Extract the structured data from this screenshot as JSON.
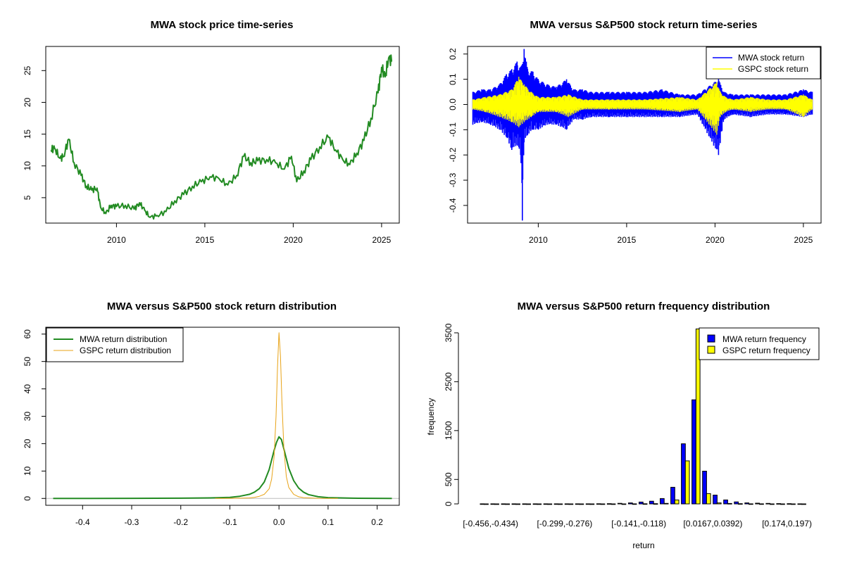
{
  "colors": {
    "price_line": "#228B22",
    "mwa": "#0000FF",
    "gspc": "#FFFF00",
    "mwa_density": "#228B22",
    "gspc_density": "#E8A317",
    "frame": "#000000"
  },
  "chart_data": [
    {
      "id": "price",
      "type": "line",
      "title": "MWA stock price time-series",
      "xlabel": "",
      "ylabel": "",
      "xlim": [
        2006.0,
        2026.0
      ],
      "ylim": [
        1.0,
        28.8
      ],
      "xticks": [
        2010,
        2015,
        2020,
        2025
      ],
      "yticks": [
        5,
        10,
        15,
        20,
        25
      ],
      "series": [
        {
          "x": [
            2006.3,
            2006.5,
            2006.8,
            2007.0,
            2007.3,
            2007.6,
            2008.0,
            2008.3,
            2008.6,
            2008.9,
            2009.1,
            2009.4,
            2009.7,
            2010.0,
            2010.5,
            2011.0,
            2011.3,
            2011.6,
            2011.9,
            2012.3,
            2012.8,
            2013.3,
            2013.8,
            2014.3,
            2014.8,
            2015.3,
            2015.8,
            2016.3,
            2016.8,
            2017.2,
            2017.6,
            2018.0,
            2018.5,
            2019.0,
            2019.5,
            2019.9,
            2020.2,
            2020.6,
            2021.0,
            2021.5,
            2022.0,
            2022.4,
            2022.8,
            2023.2,
            2023.6,
            2024.0,
            2024.4,
            2024.8,
            2025.0,
            2025.2,
            2025.4,
            2025.6
          ],
          "y": [
            12.5,
            12.8,
            11.2,
            11.5,
            14.2,
            10.5,
            8.5,
            6.8,
            6.2,
            6.5,
            3.5,
            2.5,
            3.8,
            3.6,
            3.8,
            3.2,
            4.2,
            3.0,
            1.9,
            2.2,
            2.8,
            4.5,
            5.5,
            6.8,
            7.5,
            8.3,
            8.0,
            7.0,
            8.5,
            11.5,
            10.5,
            10.8,
            11.0,
            10.5,
            9.5,
            11.5,
            7.5,
            9.2,
            11.0,
            13.0,
            14.5,
            12.5,
            11.0,
            10.2,
            12.0,
            14.0,
            17.5,
            21.5,
            25.5,
            24.0,
            27.0,
            26.5
          ]
        }
      ]
    },
    {
      "id": "returns",
      "type": "line",
      "title": "MWA versus S&P500 stock return time-series",
      "xlabel": "",
      "ylabel": "",
      "xlim": [
        2006.0,
        2026.0
      ],
      "ylim": [
        -0.47,
        0.23
      ],
      "xticks": [
        2010,
        2015,
        2020,
        2025
      ],
      "yticks": [
        0.2,
        0.1,
        0.0,
        -0.1,
        -0.2,
        -0.3,
        -0.4
      ],
      "ytick_labels": [
        "0.2",
        "0.1",
        "0.0",
        "-0.1",
        "-0.2",
        "-0.3",
        "-0.4"
      ],
      "legend_position": "top-right",
      "series": [
        {
          "name": "MWA stock return",
          "x": [
            2006.3,
            2006.8,
            2007.3,
            2007.8,
            2008.2,
            2008.5,
            2008.8,
            2009.0,
            2009.1,
            2009.2,
            2009.4,
            2009.7,
            2010.0,
            2010.5,
            2011.0,
            2011.6,
            2012.0,
            2012.5,
            2013.0,
            2014.0,
            2015.0,
            2016.0,
            2017.0,
            2018.0,
            2019.0,
            2020.2,
            2020.5,
            2021.0,
            2022.0,
            2023.0,
            2024.0,
            2025.0,
            2025.5
          ],
          "high": [
            0.05,
            0.06,
            0.06,
            0.08,
            0.12,
            0.14,
            0.17,
            0.15,
            0.16,
            0.22,
            0.14,
            0.13,
            0.1,
            0.08,
            0.07,
            0.1,
            0.06,
            0.06,
            0.05,
            0.05,
            0.05,
            0.05,
            0.06,
            0.04,
            0.04,
            0.1,
            0.05,
            0.04,
            0.04,
            0.04,
            0.04,
            0.06,
            0.05
          ],
          "low": [
            -0.08,
            -0.07,
            -0.08,
            -0.1,
            -0.13,
            -0.18,
            -0.16,
            -0.2,
            -0.46,
            -0.15,
            -0.12,
            -0.1,
            -0.1,
            -0.08,
            -0.08,
            -0.1,
            -0.06,
            -0.06,
            -0.05,
            -0.05,
            -0.05,
            -0.05,
            -0.05,
            -0.05,
            -0.04,
            -0.2,
            -0.06,
            -0.04,
            -0.05,
            -0.04,
            -0.04,
            -0.05,
            -0.04
          ]
        },
        {
          "name": "GSPC stock return",
          "x": [
            2006.3,
            2007.0,
            2007.8,
            2008.5,
            2008.9,
            2009.2,
            2009.6,
            2010.0,
            2011.0,
            2011.7,
            2012.5,
            2014.0,
            2016.0,
            2018.0,
            2019.0,
            2020.1,
            2020.3,
            2020.6,
            2021.0,
            2022.0,
            2023.0,
            2024.0,
            2025.0,
            2025.5
          ],
          "high": [
            0.02,
            0.03,
            0.04,
            0.06,
            0.11,
            0.08,
            0.05,
            0.03,
            0.03,
            0.04,
            0.02,
            0.02,
            0.02,
            0.03,
            0.02,
            0.09,
            0.05,
            0.03,
            0.02,
            0.03,
            0.02,
            0.02,
            0.04,
            0.02
          ],
          "low": [
            -0.02,
            -0.03,
            -0.05,
            -0.07,
            -0.09,
            -0.07,
            -0.05,
            -0.03,
            -0.03,
            -0.05,
            -0.02,
            -0.02,
            -0.02,
            -0.03,
            -0.02,
            -0.12,
            -0.05,
            -0.03,
            -0.02,
            -0.03,
            -0.02,
            -0.02,
            -0.05,
            -0.02
          ]
        }
      ]
    },
    {
      "id": "density",
      "type": "line",
      "title": "MWA versus S&P500 stock return distribution",
      "xlabel": "",
      "ylabel": "",
      "xlim": [
        -0.475,
        0.245
      ],
      "ylim": [
        -2.5,
        62.5
      ],
      "xticks": [
        -0.4,
        -0.3,
        -0.2,
        -0.1,
        0.0,
        0.1,
        0.2
      ],
      "xtick_labels": [
        "-0.4",
        "-0.3",
        "-0.2",
        "-0.1",
        "0.0",
        "0.1",
        "0.2"
      ],
      "yticks": [
        0,
        10,
        20,
        30,
        40,
        50,
        60
      ],
      "legend_position": "top-left",
      "series": [
        {
          "name": "MWA return distribution",
          "x": [
            -0.46,
            -0.3,
            -0.2,
            -0.14,
            -0.1,
            -0.08,
            -0.06,
            -0.05,
            -0.04,
            -0.03,
            -0.02,
            -0.01,
            -0.005,
            0.0,
            0.005,
            0.01,
            0.02,
            0.03,
            0.04,
            0.05,
            0.06,
            0.08,
            0.1,
            0.15,
            0.23
          ],
          "y": [
            0.0,
            0.05,
            0.1,
            0.2,
            0.4,
            0.8,
            1.5,
            2.3,
            3.6,
            6.0,
            10.5,
            17.5,
            20.5,
            22.5,
            21.5,
            18.0,
            11.0,
            6.5,
            3.8,
            2.3,
            1.4,
            0.6,
            0.3,
            0.1,
            0.0
          ]
        },
        {
          "name": "GSPC return distribution",
          "x": [
            -0.13,
            -0.1,
            -0.08,
            -0.06,
            -0.05,
            -0.04,
            -0.03,
            -0.02,
            -0.015,
            -0.01,
            -0.006,
            -0.003,
            0.0,
            0.003,
            0.006,
            0.01,
            0.015,
            0.02,
            0.03,
            0.04,
            0.05,
            0.08,
            0.12
          ],
          "y": [
            0.0,
            0.05,
            0.1,
            0.2,
            0.4,
            0.8,
            1.5,
            3.5,
            7.0,
            15.0,
            30.0,
            48.0,
            60.5,
            52.0,
            35.0,
            18.0,
            8.0,
            4.0,
            1.5,
            0.6,
            0.3,
            0.05,
            0.0
          ]
        }
      ]
    },
    {
      "id": "frequency",
      "type": "bar",
      "title": "MWA versus S&P500 return frequency distribution",
      "xlabel": "return",
      "ylabel": "frequency",
      "ylim": [
        0,
        3600
      ],
      "yticks": [
        0,
        500,
        1500,
        2500,
        3500
      ],
      "legend_position": "top-right",
      "category_tick_labels": [
        "[-0.456,-0.434)",
        "[-0.299,-0.276)",
        "[-0.141,-0.118)",
        "[0.0167,0.0392)",
        "[0.174,0.197)"
      ],
      "categories_count": 31,
      "series": [
        {
          "name": "MWA return frequency",
          "values": [
            2,
            1,
            1,
            1,
            1,
            1,
            1,
            1,
            1,
            1,
            2,
            3,
            5,
            12,
            20,
            38,
            55,
            110,
            340,
            1230,
            2130,
            670,
            180,
            80,
            40,
            20,
            15,
            10,
            6,
            4,
            2
          ]
        },
        {
          "name": "GSPC return frequency",
          "values": [
            0,
            0,
            0,
            0,
            0,
            0,
            0,
            0,
            0,
            0,
            0,
            0,
            0,
            0,
            2,
            3,
            5,
            10,
            80,
            880,
            3580,
            210,
            20,
            8,
            4,
            2,
            1,
            0,
            0,
            0,
            0
          ]
        }
      ]
    }
  ]
}
